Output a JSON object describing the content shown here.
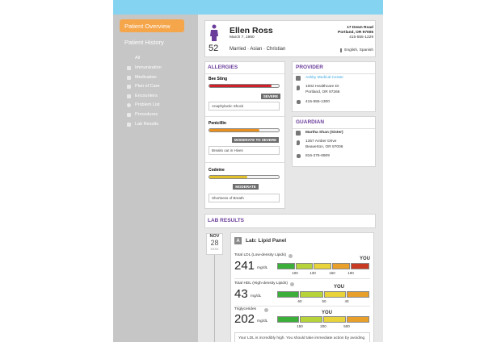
{
  "sidebar": {
    "primary": "Patient Overview",
    "secondary": "Patient History",
    "items": [
      "All",
      "Immunization",
      "Medication",
      "Plan of Care",
      "Encounters",
      "Problem List",
      "Procedures",
      "Lab Results"
    ]
  },
  "patient": {
    "name": "Ellen Ross",
    "birth_date": "March 7, 1960",
    "age": 52,
    "details": "Married · Asian · Christian",
    "address_line1": "17 Dewn Road",
    "address_line2": "Portland, OR 97006",
    "phone": "415-555-1229",
    "languages": "English, Spanish"
  },
  "allergies": {
    "title": "ALLERGIES",
    "items": [
      {
        "name": "Bee Sting",
        "severity": "SEVERE",
        "reaction": "Anaphylactic Shock"
      },
      {
        "name": "Penicillin",
        "severity": "MODERATE TO SEVERE",
        "reaction": "Breaks out in Hives"
      },
      {
        "name": "Codeine",
        "severity": "MODERATE",
        "reaction": "Shortness of Breath"
      }
    ]
  },
  "provider": {
    "title": "PROVIDER",
    "name": "Ashby Medical Center",
    "address_line1": "1002 Healthcare Dr",
    "address_line2": "Portland, OR 97266",
    "phone": "415-555-1300"
  },
  "guardian": {
    "title": "GUARDIAN",
    "name": "Martha Shan (Sister)",
    "address_line1": "1357 Amber Drive",
    "address_line2": "Beaverton, OR 97006",
    "phone": "816-276-6909"
  },
  "lab_results": {
    "title": "LAB RESULTS",
    "date": {
      "month": "NOV",
      "day": 28,
      "year": "XXXX"
    },
    "panel": {
      "icon": "A",
      "title": "Lab: Lipid Panel",
      "tests": [
        {
          "name": "Total LDL (Low-density Lipids)",
          "value": 241,
          "unit": "mg/dL",
          "marker": "YOU",
          "thresholds": [
            100,
            130,
            160,
            190
          ]
        },
        {
          "name": "Total HDL (High-density Lipids)",
          "value": 43,
          "unit": "mg/dL",
          "marker": "YOU",
          "thresholds": [
            60,
            50,
            40
          ]
        },
        {
          "name": "Triglycerides",
          "value": 202,
          "unit": "mg/dL",
          "marker": "YOU",
          "thresholds": [
            150,
            200,
            500
          ]
        }
      ],
      "note": "Your LDL is incredibly high. You should take immediate action by avoiding"
    }
  }
}
